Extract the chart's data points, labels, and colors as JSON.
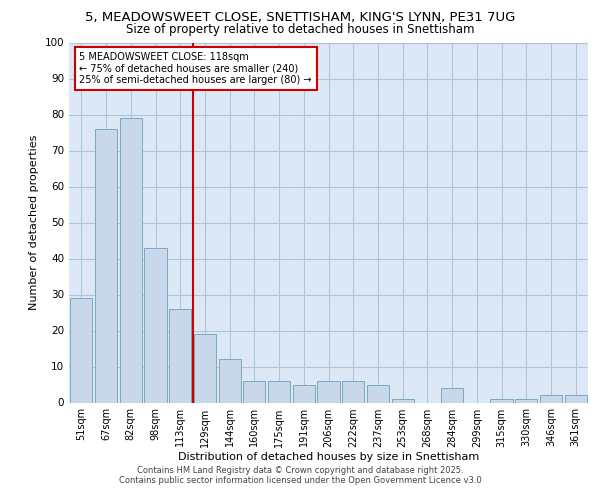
{
  "title_line1": "5, MEADOWSWEET CLOSE, SNETTISHAM, KING'S LYNN, PE31 7UG",
  "title_line2": "Size of property relative to detached houses in Snettisham",
  "xlabel": "Distribution of detached houses by size in Snettisham",
  "ylabel": "Number of detached properties",
  "categories": [
    "51sqm",
    "67sqm",
    "82sqm",
    "98sqm",
    "113sqm",
    "129sqm",
    "144sqm",
    "160sqm",
    "175sqm",
    "191sqm",
    "206sqm",
    "222sqm",
    "237sqm",
    "253sqm",
    "268sqm",
    "284sqm",
    "299sqm",
    "315sqm",
    "330sqm",
    "346sqm",
    "361sqm"
  ],
  "values": [
    29,
    76,
    79,
    43,
    26,
    19,
    12,
    6,
    6,
    5,
    6,
    6,
    5,
    1,
    0,
    4,
    0,
    1,
    1,
    2,
    2
  ],
  "bar_color": "#c8d8ea",
  "bar_edge_color": "#7aaabe",
  "vline_x": 4.5,
  "vline_color": "#cc0000",
  "annotation_text": "5 MEADOWSWEET CLOSE: 118sqm\n← 75% of detached houses are smaller (240)\n25% of semi-detached houses are larger (80) →",
  "annotation_box_color": "#ffffff",
  "annotation_box_edge": "#cc0000",
  "ylim": [
    0,
    100
  ],
  "yticks": [
    0,
    10,
    20,
    30,
    40,
    50,
    60,
    70,
    80,
    90,
    100
  ],
  "footer_line1": "Contains HM Land Registry data © Crown copyright and database right 2025.",
  "footer_line2": "Contains public sector information licensed under the Open Government Licence v3.0",
  "bg_color": "#ffffff",
  "plot_bg_color": "#dce8f5"
}
